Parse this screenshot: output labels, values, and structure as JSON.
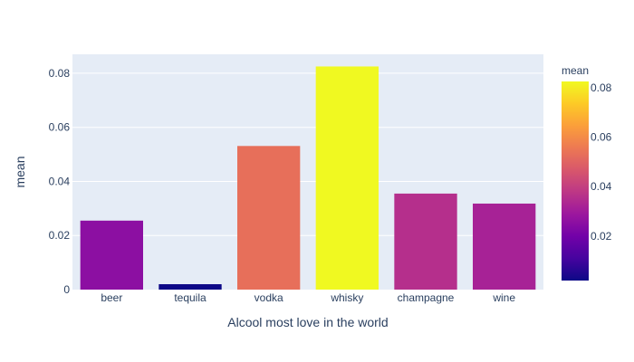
{
  "chart_data": {
    "type": "bar",
    "categories": [
      "beer",
      "tequila",
      "vodka",
      "whisky",
      "champagne",
      "wine"
    ],
    "values": [
      0.0255,
      0.002,
      0.0531,
      0.0825,
      0.0355,
      0.0318
    ],
    "xlabel": "Alcool most love in the world",
    "ylabel": "mean",
    "ylim": [
      0,
      0.087
    ],
    "yticks": [
      0,
      0.02,
      0.04,
      0.06,
      0.08
    ],
    "ytick_labels": [
      "0",
      "0.02",
      "0.04",
      "0.06",
      "0.08"
    ],
    "grid": true,
    "colorbar": {
      "title": "mean",
      "range": [
        0.002,
        0.0825
      ],
      "ticks": [
        0.02,
        0.04,
        0.06,
        0.08
      ],
      "tick_labels": [
        "0.02",
        "0.04",
        "0.06",
        "0.08"
      ],
      "colorscale": [
        "#0d0887",
        "#46039f",
        "#7201a8",
        "#9c179e",
        "#bd3786",
        "#d8576b",
        "#ed7953",
        "#fb9f3a",
        "#fdca26",
        "#f0f921"
      ]
    },
    "plot_background": "#e5ecf6",
    "text_color": "#2a3f5f"
  }
}
